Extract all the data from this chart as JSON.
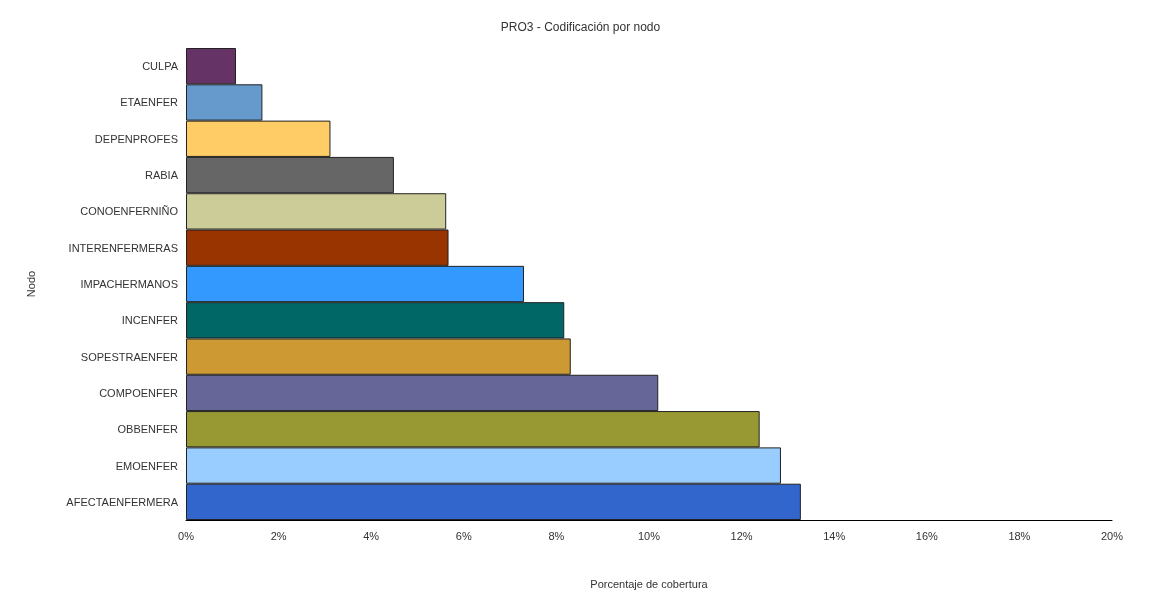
{
  "chart_data": {
    "type": "bar",
    "orientation": "horizontal",
    "title": "PRO3 - Codificación por nodo",
    "xlabel": "Porcentaje de cobertura",
    "ylabel": "Nodo",
    "categories": [
      "CULPA",
      "ETAENFER",
      "DEPENPROFES",
      "RABIA",
      "CONOENFERNIÑO",
      "INTERENFERMERAS",
      "IMPACHERMANOS",
      "INCENFER",
      "SOPESTRAENFER",
      "COMPOENFER",
      "OBBENFER",
      "EMOENFER",
      "AFECTAENFERMERA"
    ],
    "values": [
      1.08,
      1.65,
      3.12,
      4.49,
      5.62,
      5.67,
      7.3,
      8.17,
      8.31,
      10.2,
      12.39,
      12.85,
      13.28
    ],
    "colors": [
      "#663366",
      "#6699cc",
      "#ffcc66",
      "#666666",
      "#cccc99",
      "#993300",
      "#3399ff",
      "#006666",
      "#cc9933",
      "#666699",
      "#999933",
      "#99ccff",
      "#3366cc"
    ],
    "xlim": [
      0,
      20
    ],
    "xticks": [
      {
        "value": 0,
        "label": "0%"
      },
      {
        "value": 2,
        "label": "2%"
      },
      {
        "value": 4,
        "label": "4%"
      },
      {
        "value": 6,
        "label": "6%"
      },
      {
        "value": 8,
        "label": "8%"
      },
      {
        "value": 10,
        "label": "10%"
      },
      {
        "value": 12,
        "label": "12%"
      },
      {
        "value": 14,
        "label": "14%"
      },
      {
        "value": 16,
        "label": "16%"
      },
      {
        "value": 18,
        "label": "18%"
      },
      {
        "value": 20,
        "label": "20%"
      }
    ]
  }
}
